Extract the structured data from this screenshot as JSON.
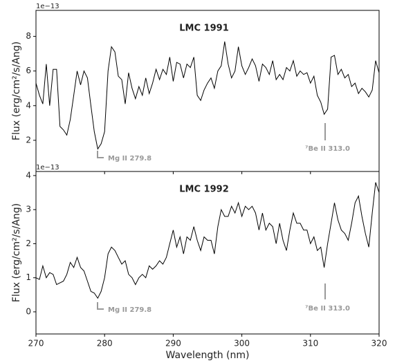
{
  "chart_data": [
    {
      "type": "line",
      "title": "LMC 1991",
      "offset_text": "1e−13",
      "ylabel": "Flux (erg/cm²/s/Ang)",
      "annotations": [
        "Mg II 279.8",
        "⁷Be II 313.0"
      ],
      "xlim": [
        270,
        320
      ],
      "xticks": [
        270,
        280,
        290,
        300,
        310,
        320
      ],
      "ylim": [
        0.2,
        9.5
      ],
      "yticks": [
        2,
        4,
        6,
        8
      ],
      "x": [
        270,
        270.5,
        271,
        271.5,
        272,
        272.5,
        273,
        273.5,
        274,
        274.5,
        275,
        275.5,
        276,
        276.5,
        277,
        277.5,
        278,
        278.5,
        279,
        279.5,
        280,
        280.5,
        281,
        281.5,
        282,
        282.5,
        283,
        283.5,
        284,
        284.5,
        285,
        285.5,
        286,
        286.5,
        287,
        287.5,
        288,
        288.5,
        289,
        289.5,
        290,
        290.5,
        291,
        291.5,
        292,
        292.5,
        293,
        293.5,
        294,
        294.5,
        295,
        295.5,
        296,
        296.5,
        297,
        297.5,
        298,
        298.5,
        299,
        299.5,
        300,
        300.5,
        301,
        301.5,
        302,
        302.5,
        303,
        303.5,
        304,
        304.5,
        305,
        305.5,
        306,
        306.5,
        307,
        307.5,
        308,
        308.5,
        309,
        309.5,
        310,
        310.5,
        311,
        311.5,
        312,
        312.5,
        313,
        313.5,
        314,
        314.5,
        315,
        315.5,
        316,
        316.5,
        317,
        317.5,
        318,
        318.5,
        319,
        319.5,
        320
      ],
      "series": [
        {
          "color": "#000000",
          "values": [
            5.3,
            4.6,
            4.1,
            6.4,
            4.0,
            6.1,
            6.1,
            2.8,
            2.6,
            2.3,
            3.2,
            4.6,
            6.0,
            5.2,
            6.0,
            5.6,
            4.0,
            2.5,
            1.5,
            1.8,
            2.5,
            6.0,
            7.4,
            7.1,
            5.7,
            5.5,
            4.1,
            5.9,
            5.0,
            4.4,
            5.1,
            4.6,
            5.6,
            4.7,
            5.3,
            6.1,
            5.5,
            6.1,
            5.8,
            6.8,
            5.4,
            6.5,
            6.4,
            5.6,
            6.4,
            6.2,
            6.8,
            4.6,
            4.3,
            4.9,
            5.3,
            5.6,
            5.0,
            6.0,
            6.3,
            7.7,
            6.4,
            5.6,
            6.0,
            7.4,
            6.3,
            5.8,
            6.2,
            6.7,
            6.3,
            5.4,
            6.4,
            6.2,
            5.8,
            6.6,
            5.5,
            5.8,
            5.5,
            6.2,
            6.0,
            6.6,
            5.7,
            6.0,
            5.8,
            5.9,
            5.3,
            5.7,
            4.6,
            4.2,
            3.5,
            3.8,
            6.8,
            6.9,
            5.8,
            6.1,
            5.6,
            5.8,
            5.1,
            5.3,
            4.7,
            5.0,
            4.8,
            4.5,
            4.9,
            6.6,
            5.9
          ]
        }
      ]
    },
    {
      "type": "line",
      "title": "LMC 1992",
      "offset_text": "1e−13",
      "ylabel": "Flux (erg/cm²/s/Ang)",
      "xlabel": "Wavelength (nm)",
      "annotations": [
        "Mg II 279.8",
        "⁷Be II 313.0"
      ],
      "xlim": [
        270,
        320
      ],
      "xticks": [
        270,
        280,
        290,
        300,
        310,
        320
      ],
      "ylim": [
        -0.65,
        4.12
      ],
      "yticks": [
        0,
        1,
        2,
        3,
        4
      ],
      "x": [
        270,
        270.5,
        271,
        271.5,
        272,
        272.5,
        273,
        273.5,
        274,
        274.5,
        275,
        275.5,
        276,
        276.5,
        277,
        277.5,
        278,
        278.5,
        279,
        279.5,
        280,
        280.5,
        281,
        281.5,
        282,
        282.5,
        283,
        283.5,
        284,
        284.5,
        285,
        285.5,
        286,
        286.5,
        287,
        287.5,
        288,
        288.5,
        289,
        289.5,
        290,
        290.5,
        291,
        291.5,
        292,
        292.5,
        293,
        293.5,
        294,
        294.5,
        295,
        295.5,
        296,
        296.5,
        297,
        297.5,
        298,
        298.5,
        299,
        299.5,
        300,
        300.5,
        301,
        301.5,
        302,
        302.5,
        303,
        303.5,
        304,
        304.5,
        305,
        305.5,
        306,
        306.5,
        307,
        307.5,
        308,
        308.5,
        309,
        309.5,
        310,
        310.5,
        311,
        311.5,
        312,
        312.5,
        313,
        313.5,
        314,
        314.5,
        315,
        315.5,
        316,
        316.5,
        317,
        317.5,
        318,
        318.5,
        319,
        319.5,
        320
      ],
      "series": [
        {
          "color": "#000000",
          "values": [
            1.0,
            0.95,
            1.35,
            1.0,
            1.15,
            1.1,
            0.8,
            0.85,
            0.9,
            1.1,
            1.45,
            1.3,
            1.6,
            1.3,
            1.2,
            0.9,
            0.6,
            0.55,
            0.4,
            0.6,
            1.0,
            1.7,
            1.9,
            1.8,
            1.6,
            1.4,
            1.5,
            1.1,
            1.0,
            0.8,
            1.0,
            1.1,
            1.0,
            1.35,
            1.25,
            1.35,
            1.5,
            1.4,
            1.6,
            2.0,
            2.4,
            1.9,
            2.2,
            1.7,
            2.2,
            2.1,
            2.5,
            2.1,
            1.8,
            2.2,
            2.1,
            2.1,
            1.7,
            2.5,
            3.0,
            2.8,
            2.8,
            3.1,
            2.9,
            3.2,
            2.8,
            3.1,
            3.0,
            3.1,
            2.9,
            2.4,
            2.9,
            2.4,
            2.6,
            2.5,
            2.0,
            2.6,
            2.1,
            1.8,
            2.4,
            2.9,
            2.6,
            2.6,
            2.4,
            2.4,
            2.0,
            2.2,
            1.8,
            1.9,
            1.3,
            2.0,
            2.6,
            3.2,
            2.7,
            2.4,
            2.3,
            2.1,
            2.6,
            3.2,
            3.4,
            2.8,
            2.3,
            1.9,
            2.9,
            3.8,
            3.5
          ]
        }
      ]
    }
  ]
}
